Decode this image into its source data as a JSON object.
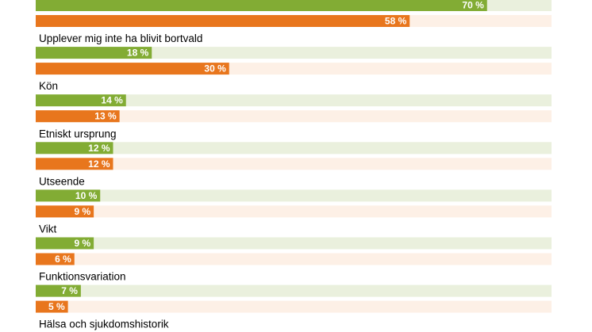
{
  "chart_data": {
    "type": "bar",
    "orientation": "horizontal",
    "xlim": [
      0,
      80
    ],
    "unit": "%",
    "colors": {
      "series_1": "#82ac34",
      "series_1_track": "#eaf0dd",
      "series_2": "#e8761d",
      "series_2_track": "#fdf0e6"
    },
    "series": [
      {
        "values": [
          70,
          18,
          14,
          12,
          10,
          9,
          7
        ]
      },
      {
        "values": [
          58,
          30,
          13,
          12,
          9,
          6,
          5
        ]
      }
    ],
    "groups": [
      {
        "label": "",
        "values": [
          70,
          58
        ],
        "labels": [
          "70 %",
          "58 %"
        ]
      },
      {
        "label": "Upplever mig inte ha blivit bortvald",
        "values": [
          18,
          30
        ],
        "labels": [
          "18 %",
          "30 %"
        ]
      },
      {
        "label": "Kön",
        "values": [
          14,
          13
        ],
        "labels": [
          "14 %",
          "13 %"
        ]
      },
      {
        "label": "Etniskt ursprung",
        "values": [
          12,
          12
        ],
        "labels": [
          "12 %",
          "12 %"
        ]
      },
      {
        "label": "Utseende",
        "values": [
          10,
          9
        ],
        "labels": [
          "10 %",
          "9 %"
        ]
      },
      {
        "label": "Vikt",
        "values": [
          9,
          6
        ],
        "labels": [
          "9 %",
          "6 %"
        ]
      },
      {
        "label": "Funktionsvariation",
        "values": [
          7,
          5
        ],
        "labels": [
          "7 %",
          "5 %"
        ]
      }
    ],
    "trailing_label": "Hälsa och sjukdomshistorik"
  }
}
